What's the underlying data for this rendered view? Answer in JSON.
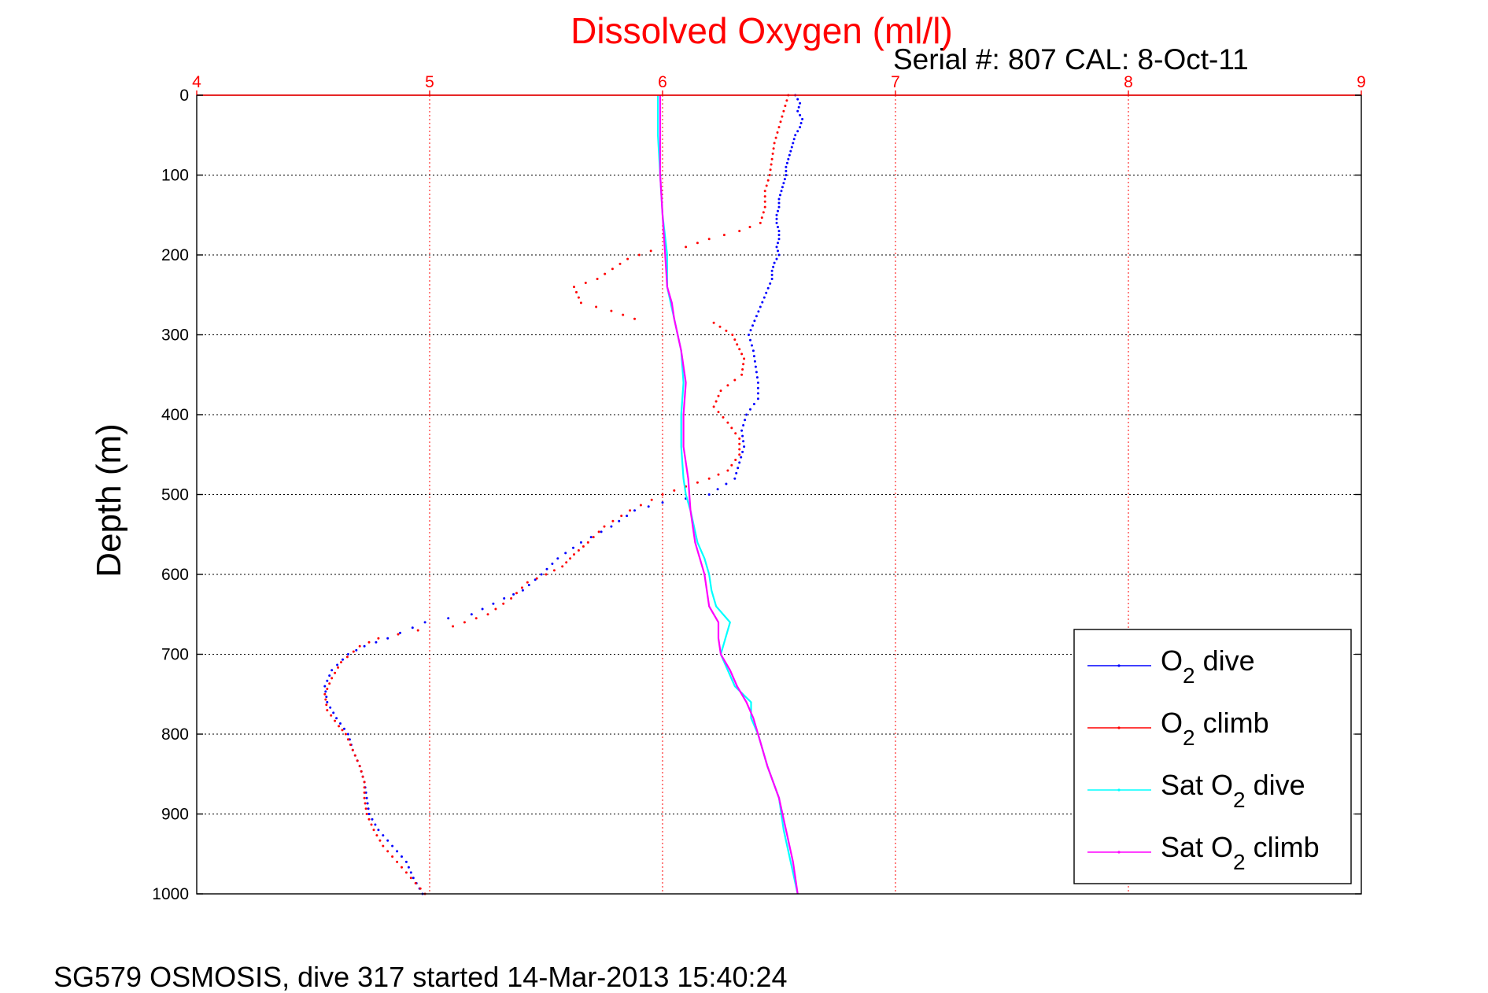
{
  "chart_data": {
    "type": "scatter",
    "title": "Dissolved Oxygen (ml/l)",
    "serial_label": "Serial #: 807  CAL: 8-Oct-11",
    "ylabel": "Depth (m)",
    "footer": "SG579 OSMOSIS, dive 317 started 14-Mar-2013 15:40:24",
    "xlim": [
      4,
      9
    ],
    "ylim": [
      0,
      1000
    ],
    "y_reversed": true,
    "x_axis_position": "top",
    "x_axis_color": "#ff0000",
    "xticks": [
      "4",
      "5",
      "6",
      "7",
      "8",
      "9"
    ],
    "yticks": [
      "0",
      "100",
      "200",
      "300",
      "400",
      "500",
      "600",
      "700",
      "800",
      "900",
      "1000"
    ],
    "grid": true,
    "legend_position": "bottom-right",
    "series": [
      {
        "name": "O2 dive",
        "legend_main": "O",
        "legend_sub": "2",
        "legend_rest": " dive",
        "color": "#0000ff",
        "style": "dots",
        "points": [
          [
            6.57,
            0
          ],
          [
            6.59,
            10
          ],
          [
            6.58,
            20
          ],
          [
            6.6,
            30
          ],
          [
            6.59,
            40
          ],
          [
            6.57,
            50
          ],
          [
            6.56,
            60
          ],
          [
            6.55,
            70
          ],
          [
            6.54,
            80
          ],
          [
            6.53,
            90
          ],
          [
            6.53,
            100
          ],
          [
            6.52,
            110
          ],
          [
            6.51,
            120
          ],
          [
            6.5,
            130
          ],
          [
            6.5,
            140
          ],
          [
            6.49,
            150
          ],
          [
            6.49,
            160
          ],
          [
            6.5,
            170
          ],
          [
            6.5,
            180
          ],
          [
            6.49,
            190
          ],
          [
            6.5,
            200
          ],
          [
            6.48,
            210
          ],
          [
            6.47,
            220
          ],
          [
            6.47,
            230
          ],
          [
            6.37,
            300
          ],
          [
            6.39,
            320
          ],
          [
            6.4,
            340
          ],
          [
            6.41,
            360
          ],
          [
            6.41,
            380
          ],
          [
            6.36,
            400
          ],
          [
            6.34,
            420
          ],
          [
            6.35,
            440
          ],
          [
            6.33,
            460
          ],
          [
            6.31,
            480
          ],
          [
            6.2,
            500
          ],
          [
            6.0,
            510
          ],
          [
            5.88,
            520
          ],
          [
            5.78,
            540
          ],
          [
            5.65,
            560
          ],
          [
            5.55,
            580
          ],
          [
            5.48,
            600
          ],
          [
            5.4,
            620
          ],
          [
            5.32,
            630
          ],
          [
            5.18,
            650
          ],
          [
            4.98,
            660
          ],
          [
            4.82,
            680
          ],
          [
            4.72,
            690
          ],
          [
            4.65,
            700
          ],
          [
            4.58,
            720
          ],
          [
            4.55,
            740
          ],
          [
            4.56,
            760
          ],
          [
            4.6,
            780
          ],
          [
            4.65,
            800
          ],
          [
            4.67,
            820
          ],
          [
            4.7,
            840
          ],
          [
            4.72,
            860
          ],
          [
            4.73,
            880
          ],
          [
            4.74,
            900
          ],
          [
            4.78,
            920
          ],
          [
            4.84,
            940
          ],
          [
            4.9,
            960
          ],
          [
            4.93,
            980
          ],
          [
            4.97,
            1000
          ]
        ]
      },
      {
        "name": "O2 climb",
        "legend_main": "O",
        "legend_sub": "2",
        "legend_rest": " climb",
        "color": "#ff0000",
        "style": "dots",
        "points": [
          [
            4.98,
            1000
          ],
          [
            4.92,
            980
          ],
          [
            4.86,
            960
          ],
          [
            4.8,
            940
          ],
          [
            4.76,
            920
          ],
          [
            4.73,
            900
          ],
          [
            4.72,
            880
          ],
          [
            4.72,
            860
          ],
          [
            4.7,
            840
          ],
          [
            4.67,
            820
          ],
          [
            4.64,
            800
          ],
          [
            4.61,
            790
          ],
          [
            4.56,
            770
          ],
          [
            4.55,
            750
          ],
          [
            4.58,
            730
          ],
          [
            4.62,
            710
          ],
          [
            4.7,
            690
          ],
          [
            4.78,
            680
          ],
          [
            4.95,
            670
          ],
          [
            5.1,
            665
          ],
          [
            5.25,
            650
          ],
          [
            5.35,
            630
          ],
          [
            5.42,
            610
          ],
          [
            5.5,
            600
          ],
          [
            5.57,
            590
          ],
          [
            5.62,
            575
          ],
          [
            5.68,
            560
          ],
          [
            5.75,
            540
          ],
          [
            5.86,
            520
          ],
          [
            6.0,
            500
          ],
          [
            6.1,
            490
          ],
          [
            6.2,
            480
          ],
          [
            6.28,
            470
          ],
          [
            6.33,
            450
          ],
          [
            6.33,
            430
          ],
          [
            6.28,
            410
          ],
          [
            6.22,
            390
          ],
          [
            6.25,
            370
          ],
          [
            6.34,
            350
          ],
          [
            6.35,
            330
          ],
          [
            6.3,
            300
          ],
          [
            6.22,
            285
          ],
          [
            5.88,
            280
          ],
          [
            5.78,
            270
          ],
          [
            5.65,
            260
          ],
          [
            5.62,
            240
          ],
          [
            5.72,
            230
          ],
          [
            5.85,
            205
          ],
          [
            5.95,
            195
          ],
          [
            6.1,
            190
          ],
          [
            6.2,
            180
          ],
          [
            6.33,
            170
          ],
          [
            6.42,
            160
          ],
          [
            6.44,
            140
          ],
          [
            6.44,
            120
          ],
          [
            6.46,
            100
          ],
          [
            6.47,
            80
          ],
          [
            6.48,
            60
          ],
          [
            6.5,
            40
          ],
          [
            6.52,
            20
          ],
          [
            6.54,
            0
          ]
        ]
      },
      {
        "name": "Sat O2 dive",
        "legend_main": "Sat O",
        "legend_sub": "2",
        "legend_rest": " dive",
        "color": "#00ffff",
        "style": "line",
        "points": [
          [
            5.98,
            0
          ],
          [
            5.98,
            50
          ],
          [
            5.99,
            100
          ],
          [
            6.0,
            150
          ],
          [
            6.02,
            200
          ],
          [
            6.02,
            240
          ],
          [
            6.05,
            280
          ],
          [
            6.08,
            320
          ],
          [
            6.09,
            360
          ],
          [
            6.08,
            400
          ],
          [
            6.08,
            440
          ],
          [
            6.09,
            480
          ],
          [
            6.1,
            500
          ],
          [
            6.12,
            520
          ],
          [
            6.15,
            560
          ],
          [
            6.18,
            580
          ],
          [
            6.2,
            600
          ],
          [
            6.21,
            620
          ],
          [
            6.23,
            640
          ],
          [
            6.29,
            660
          ],
          [
            6.27,
            680
          ],
          [
            6.25,
            700
          ],
          [
            6.28,
            720
          ],
          [
            6.31,
            740
          ],
          [
            6.38,
            760
          ],
          [
            6.38,
            780
          ],
          [
            6.41,
            800
          ],
          [
            6.45,
            840
          ],
          [
            6.5,
            880
          ],
          [
            6.52,
            920
          ],
          [
            6.55,
            960
          ],
          [
            6.58,
            1000
          ]
        ]
      },
      {
        "name": "Sat O2 climb",
        "legend_main": "Sat O",
        "legend_sub": "2",
        "legend_rest": " climb",
        "color": "#ff00ff",
        "style": "line",
        "points": [
          [
            5.99,
            0
          ],
          [
            5.99,
            50
          ],
          [
            5.99,
            100
          ],
          [
            6.0,
            150
          ],
          [
            6.01,
            195
          ],
          [
            6.02,
            240
          ],
          [
            6.04,
            260
          ],
          [
            6.05,
            280
          ],
          [
            6.08,
            320
          ],
          [
            6.1,
            360
          ],
          [
            6.09,
            400
          ],
          [
            6.09,
            440
          ],
          [
            6.11,
            480
          ],
          [
            6.12,
            520
          ],
          [
            6.14,
            560
          ],
          [
            6.16,
            580
          ],
          [
            6.18,
            600
          ],
          [
            6.2,
            640
          ],
          [
            6.24,
            660
          ],
          [
            6.24,
            680
          ],
          [
            6.25,
            700
          ],
          [
            6.29,
            720
          ],
          [
            6.32,
            740
          ],
          [
            6.36,
            760
          ],
          [
            6.39,
            780
          ],
          [
            6.41,
            800
          ],
          [
            6.45,
            840
          ],
          [
            6.5,
            880
          ],
          [
            6.53,
            920
          ],
          [
            6.56,
            960
          ],
          [
            6.58,
            1000
          ]
        ]
      }
    ]
  }
}
